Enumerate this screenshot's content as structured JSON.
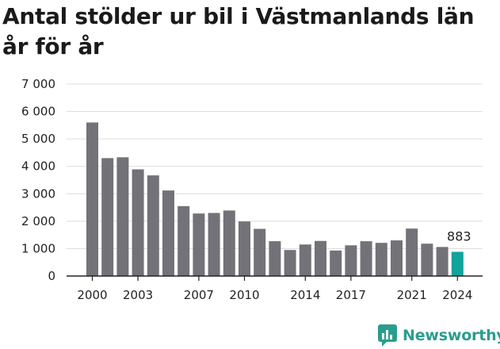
{
  "title": "Antal stölder ur bil i Västmanlands län år för år",
  "brand": {
    "name": "Newsworthy",
    "icon": "newsworthy-logo-icon",
    "color": "#2a9d8f"
  },
  "colors": {
    "bar": "#737278",
    "highlight": "#12a39a",
    "grid": "#dcdcdc",
    "axis": "#222222"
  },
  "chart_data": {
    "type": "bar",
    "title": "Antal stölder ur bil i Västmanlands län år för år",
    "xlabel": "",
    "ylabel": "",
    "categories": [
      "2000",
      "2001",
      "2002",
      "2003",
      "2004",
      "2005",
      "2006",
      "2007",
      "2008",
      "2009",
      "2010",
      "2011",
      "2012",
      "2013",
      "2014",
      "2015",
      "2016",
      "2017",
      "2018",
      "2019",
      "2020",
      "2021",
      "2022",
      "2023",
      "2024"
    ],
    "values": [
      5600,
      4300,
      4330,
      3890,
      3670,
      3120,
      2550,
      2280,
      2300,
      2390,
      1990,
      1720,
      1270,
      950,
      1150,
      1280,
      930,
      1120,
      1270,
      1210,
      1300,
      1730,
      1180,
      1060,
      883
    ],
    "x_tick_labels": [
      "2000",
      "2003",
      "2007",
      "2010",
      "2014",
      "2017",
      "2021",
      "2024"
    ],
    "y_tick_labels": [
      "0",
      "1 000",
      "2 000",
      "3 000",
      "4 000",
      "5 000",
      "6 000",
      "7 000"
    ],
    "y_ticks": [
      0,
      1000,
      2000,
      3000,
      4000,
      5000,
      6000,
      7000
    ],
    "ylim": [
      0,
      7000
    ],
    "grid": true,
    "highlight": {
      "category": "2024",
      "label": "883"
    }
  }
}
